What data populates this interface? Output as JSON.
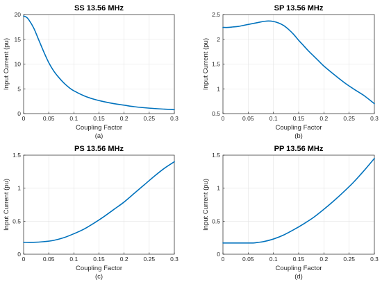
{
  "colors": {
    "line": "#0072BD"
  },
  "chart_data": [
    {
      "type": "line",
      "title": "SS 13.56 MHz",
      "xlabel": "Coupling Factor",
      "ylabel": "Input Current (pu)",
      "caption": "(a)",
      "xlim": [
        0,
        0.3
      ],
      "ylim": [
        0,
        20
      ],
      "xticks": [
        "0",
        "0.05",
        "0.1",
        "0.15",
        "0.2",
        "0.25",
        "0.3"
      ],
      "yticks": [
        "0",
        "5",
        "10",
        "15",
        "20"
      ],
      "grid": true,
      "series": [
        {
          "x": [
            0,
            0.005,
            0.01,
            0.02,
            0.03,
            0.04,
            0.05,
            0.06,
            0.07,
            0.08,
            0.09,
            0.1,
            0.12,
            0.14,
            0.16,
            0.18,
            0.2,
            0.22,
            0.25,
            0.28,
            0.3
          ],
          "y": [
            19.7,
            19.5,
            19.0,
            17.3,
            14.9,
            12.5,
            10.3,
            8.6,
            7.3,
            6.2,
            5.3,
            4.6,
            3.6,
            2.9,
            2.4,
            2.0,
            1.7,
            1.4,
            1.1,
            0.9,
            0.8
          ]
        }
      ]
    },
    {
      "type": "line",
      "title": "SP 13.56 MHz",
      "xlabel": "Coupling Factor",
      "ylabel": "Input Current (pu)",
      "caption": "(b)",
      "xlim": [
        0,
        0.3
      ],
      "ylim": [
        0.5,
        2.5
      ],
      "xticks": [
        "0",
        "0.05",
        "0.1",
        "0.15",
        "0.2",
        "0.25",
        "0.3"
      ],
      "yticks": [
        "0.5",
        "1",
        "1.5",
        "2",
        "2.5"
      ],
      "grid": true,
      "series": [
        {
          "x": [
            0,
            0.01,
            0.02,
            0.03,
            0.04,
            0.05,
            0.06,
            0.07,
            0.08,
            0.09,
            0.1,
            0.11,
            0.12,
            0.13,
            0.14,
            0.15,
            0.16,
            0.17,
            0.18,
            0.19,
            0.2,
            0.22,
            0.24,
            0.26,
            0.28,
            0.3
          ],
          "y": [
            2.24,
            2.24,
            2.25,
            2.26,
            2.28,
            2.3,
            2.32,
            2.34,
            2.36,
            2.37,
            2.36,
            2.33,
            2.28,
            2.2,
            2.1,
            1.98,
            1.87,
            1.76,
            1.66,
            1.56,
            1.46,
            1.29,
            1.13,
            0.99,
            0.86,
            0.7
          ]
        }
      ]
    },
    {
      "type": "line",
      "title": "PS 13.56 MHz",
      "xlabel": "Coupling Factor",
      "ylabel": "Input Current (pu)",
      "caption": "(c)",
      "xlim": [
        0,
        0.3
      ],
      "ylim": [
        0,
        1.5
      ],
      "xticks": [
        "0",
        "0.05",
        "0.1",
        "0.15",
        "0.2",
        "0.25",
        "0.3"
      ],
      "yticks": [
        "0",
        "0.5",
        "1",
        "1.5"
      ],
      "grid": true,
      "series": [
        {
          "x": [
            0,
            0.02,
            0.04,
            0.06,
            0.08,
            0.1,
            0.12,
            0.14,
            0.16,
            0.18,
            0.2,
            0.22,
            0.24,
            0.26,
            0.28,
            0.3
          ],
          "y": [
            0.18,
            0.18,
            0.19,
            0.21,
            0.25,
            0.31,
            0.38,
            0.47,
            0.57,
            0.68,
            0.79,
            0.92,
            1.05,
            1.18,
            1.3,
            1.4
          ]
        }
      ]
    },
    {
      "type": "line",
      "title": "PP 13.56 MHz",
      "xlabel": "Coupling Factor",
      "ylabel": "Input Current (pu)",
      "caption": "(d)",
      "xlim": [
        0,
        0.3
      ],
      "ylim": [
        0,
        1.5
      ],
      "xticks": [
        "0",
        "0.05",
        "0.1",
        "0.15",
        "0.2",
        "0.25",
        "0.3"
      ],
      "yticks": [
        "0",
        "0.5",
        "1",
        "1.5"
      ],
      "grid": true,
      "series": [
        {
          "x": [
            0,
            0.02,
            0.04,
            0.06,
            0.07,
            0.08,
            0.1,
            0.12,
            0.14,
            0.16,
            0.18,
            0.2,
            0.22,
            0.24,
            0.26,
            0.28,
            0.3
          ],
          "y": [
            0.17,
            0.17,
            0.17,
            0.17,
            0.18,
            0.19,
            0.23,
            0.29,
            0.37,
            0.46,
            0.56,
            0.68,
            0.81,
            0.95,
            1.1,
            1.27,
            1.45
          ]
        }
      ]
    }
  ]
}
